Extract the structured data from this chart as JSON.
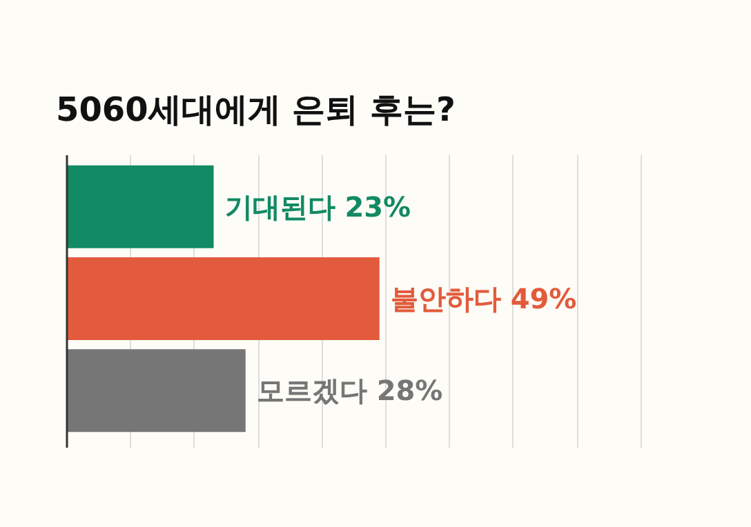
{
  "chart_data": {
    "type": "bar",
    "orientation": "horizontal",
    "title": "5060세대에게 은퇴 후는?",
    "categories": [
      null,
      null,
      null
    ],
    "values": [
      23,
      49,
      28
    ],
    "colors": [
      "#128a64",
      "#e25b3c",
      "#767676"
    ],
    "value_labels": [
      "기대된다 23%",
      "불안하다 49%",
      "모르겠다 28%"
    ],
    "xlim": [
      0,
      100
    ],
    "xticks": [
      {
        "value": 0,
        "label": null
      },
      {
        "value": 10,
        "label": null
      },
      {
        "value": 20,
        "label": null
      },
      {
        "value": 30,
        "label": null
      },
      {
        "value": 40,
        "label": null
      },
      {
        "value": 50,
        "label": null
      },
      {
        "value": 60,
        "label": null
      },
      {
        "value": 70,
        "label": null
      },
      {
        "value": 80,
        "label": null
      },
      {
        "value": 90,
        "label": null
      },
      {
        "value": 100,
        "label": null
      }
    ],
    "grid": "x",
    "tick_labels": false
  }
}
